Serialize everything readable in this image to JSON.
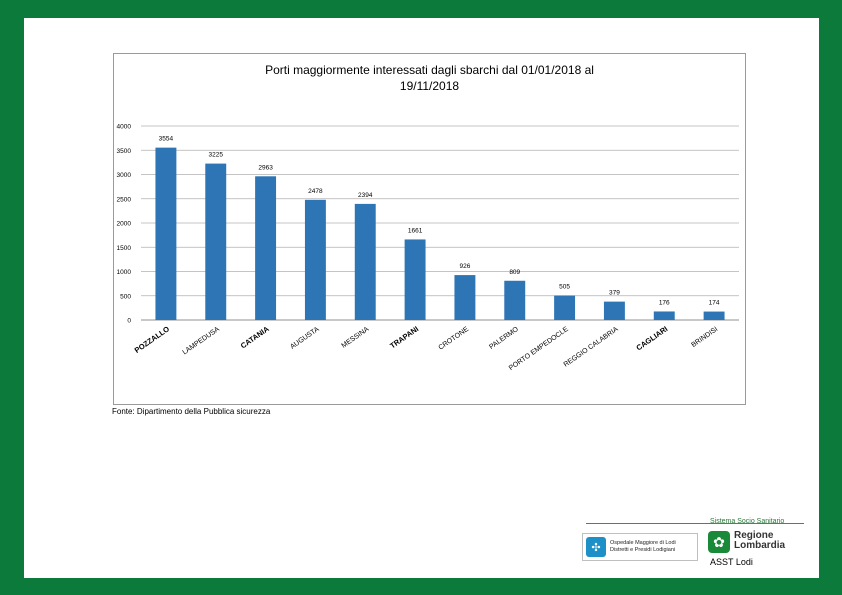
{
  "chart_data": {
    "type": "bar",
    "title": "Porti maggiormente interessati dagli sbarchi dal 01/01/2018 al 19/11/2018",
    "title_lines": [
      "Porti maggiormente interessati dagli sbarchi dal 01/01/2018 al",
      "19/11/2018"
    ],
    "categories": [
      "POZZALLO",
      "LAMPEDUSA",
      "CATANIA",
      "AUGUSTA",
      "MESSINA",
      "TRAPANI",
      "CROTONE",
      "PALERMO",
      "PORTO EMPEDOCLE",
      "REGGIO CALABRIA",
      "CAGLIARI",
      "BRINDISI"
    ],
    "bold_categories": [
      "POZZALLO",
      "CATANIA",
      "TRAPANI",
      "CAGLIARI"
    ],
    "values": [
      3554,
      3225,
      2963,
      2478,
      2394,
      1661,
      926,
      809,
      505,
      379,
      176,
      174
    ],
    "yticks": [
      0,
      500,
      1000,
      1500,
      2000,
      2500,
      3000,
      3500,
      4000
    ],
    "ylim": [
      0,
      4000
    ],
    "grid": true,
    "bar_color": "#2e75b6",
    "xlabel": "",
    "ylabel": ""
  },
  "source": "Fonte: Dipartimento della Pubblica sicurezza",
  "footer": {
    "tagline": "Sistema Socio Sanitario",
    "hospital_lines": [
      "Ospedale Maggiore di Lodi",
      "Distretti e Presidi Lodigiani"
    ],
    "region_lines": [
      "Regione",
      "Lombardia"
    ],
    "asst": "ASST Lodi"
  }
}
